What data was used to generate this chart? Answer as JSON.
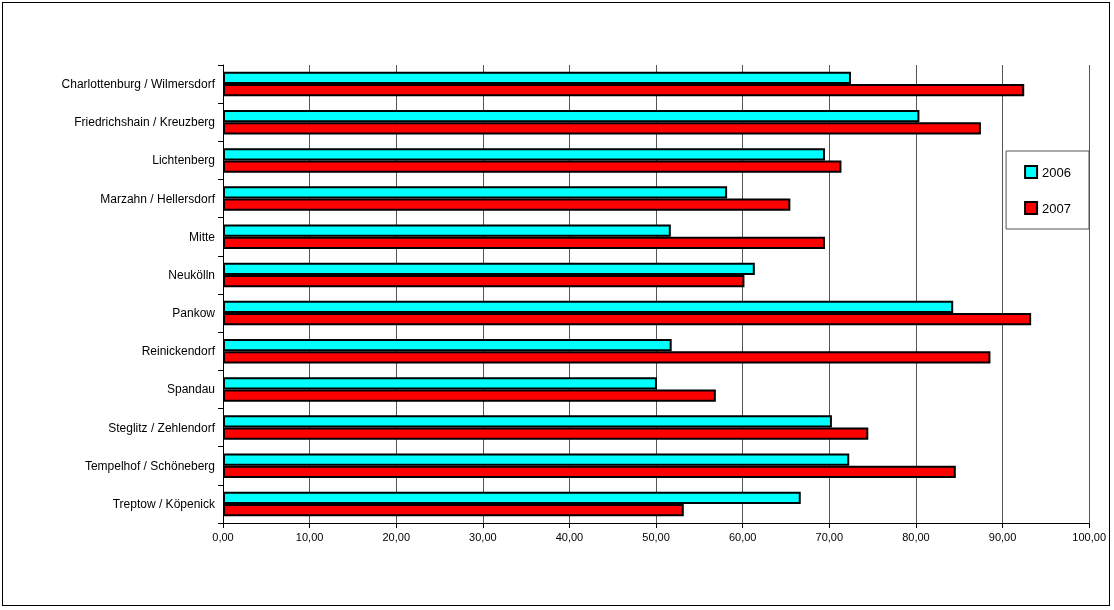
{
  "chart_data": {
    "type": "bar",
    "orientation": "horizontal",
    "categories": [
      "Charlottenburg / Wilmersdorf",
      "Friedrichshain / Kreuzberg",
      "Lichtenberg",
      "Marzahn / Hellersdorf",
      "Mitte",
      "Neukölln",
      "Pankow",
      "Reinickendorf",
      "Spandau",
      "Steglitz / Zehlendorf",
      "Tempelhof / Schöneberg",
      "Treptow / Köpenick"
    ],
    "series": [
      {
        "name": "2006",
        "color": "#00ffff",
        "values": [
          72.5,
          80.4,
          69.5,
          58.2,
          51.7,
          61.4,
          84.3,
          51.8,
          50.1,
          70.3,
          72.3,
          66.7
        ]
      },
      {
        "name": "2007",
        "color": "#ff0000",
        "values": [
          92.5,
          87.5,
          71.4,
          65.5,
          69.5,
          60.2,
          93.3,
          88.6,
          56.9,
          74.5,
          84.6,
          53.2
        ]
      }
    ],
    "xlim": [
      0,
      100
    ],
    "xticks": [
      {
        "value": 0,
        "label": "0,00"
      },
      {
        "value": 10,
        "label": "10,00"
      },
      {
        "value": 20,
        "label": "20,00"
      },
      {
        "value": 30,
        "label": "30,00"
      },
      {
        "value": 40,
        "label": "40,00"
      },
      {
        "value": 50,
        "label": "50,00"
      },
      {
        "value": 60,
        "label": "60,00"
      },
      {
        "value": 70,
        "label": "70,00"
      },
      {
        "value": 80,
        "label": "80,00"
      },
      {
        "value": 90,
        "label": "90,00"
      },
      {
        "value": 100,
        "label": "100,00"
      }
    ],
    "grid": "x",
    "legend": "right"
  }
}
